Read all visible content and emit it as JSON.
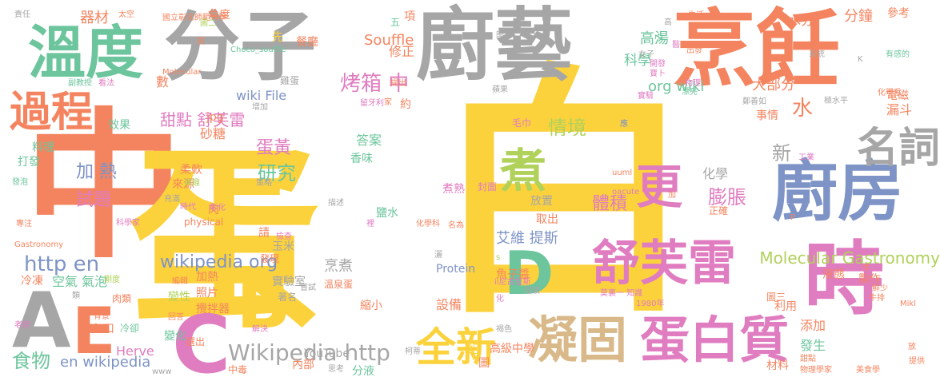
{
  "palette": {
    "orange": "#f4845f",
    "yellow": "#fcd23c",
    "gray": "#a6a6a6",
    "green": "#6cc59c",
    "blue": "#7e93c6",
    "pink": "#e07cc0",
    "lime": "#b0d15a",
    "tan": "#d9b98a"
  },
  "words": [
    {
      "t": "中"
    },
    {
      "t": "蛋"
    },
    {
      "t": "白"
    },
    {
      "t": "烹飪"
    },
    {
      "t": "廚藝"
    },
    {
      "t": "分子"
    },
    {
      "t": "溫度"
    },
    {
      "t": "過程"
    },
    {
      "t": "時"
    },
    {
      "t": "廚房"
    },
    {
      "t": "名詞"
    },
    {
      "t": "舒芙雷"
    },
    {
      "t": "蛋白質"
    },
    {
      "t": "凝固"
    },
    {
      "t": "全新"
    },
    {
      "t": "更"
    },
    {
      "t": "煮"
    },
    {
      "t": "D"
    },
    {
      "t": "A"
    },
    {
      "t": "E"
    },
    {
      "t": "C"
    },
    {
      "t": "B"
    },
    {
      "t": "Wikipedia http"
    },
    {
      "t": "http en"
    },
    {
      "t": "食物"
    },
    {
      "t": "en wikipedia"
    },
    {
      "t": "Molecular Gastronomy"
    },
    {
      "t": "wikipedia org"
    },
    {
      "t": "艾維 提斯"
    },
    {
      "t": "膨脹"
    },
    {
      "t": "體積"
    },
    {
      "t": "情境"
    },
    {
      "t": "蛋黃"
    },
    {
      "t": "研究"
    },
    {
      "t": "加 熱"
    },
    {
      "t": "試題"
    },
    {
      "t": "烤箱 中"
    },
    {
      "t": "甜點 舒芙雷"
    },
    {
      "t": "Souffle"
    },
    {
      "t": "wiki File"
    },
    {
      "t": "高湯"
    },
    {
      "t": "大部分"
    },
    {
      "t": "分鐘"
    },
    {
      "t": "科學"
    },
    {
      "t": "org wiki"
    },
    {
      "t": "水"
    },
    {
      "t": "新"
    },
    {
      "t": "化學"
    },
    {
      "t": "溫泉蛋"
    },
    {
      "t": "烹煮"
    },
    {
      "t": "Protein"
    },
    {
      "t": "YouTube"
    },
    {
      "t": "設備"
    },
    {
      "t": "內部"
    },
    {
      "t": "分液"
    },
    {
      "t": "發生"
    },
    {
      "t": "添加"
    },
    {
      "t": "利用"
    },
    {
      "t": "材料"
    },
    {
      "t": "製作"
    },
    {
      "t": "液態"
    },
    {
      "t": "圖三"
    },
    {
      "t": "漏斗"
    },
    {
      "t": "電磁"
    },
    {
      "t": "水分"
    },
    {
      "t": "參考"
    },
    {
      "t": "五"
    },
    {
      "t": "項"
    },
    {
      "t": "修正"
    },
    {
      "t": "先"
    },
    {
      "t": "餐廳"
    },
    {
      "t": "雞蛋"
    },
    {
      "t": "約"
    },
    {
      "t": "角度"
    },
    {
      "t": "器材"
    },
    {
      "t": "數"
    },
    {
      "t": "效果"
    },
    {
      "t": "料理"
    },
    {
      "t": "打發"
    },
    {
      "t": "冷凍"
    },
    {
      "t": "空氣 氣泡"
    },
    {
      "t": "肉類"
    },
    {
      "t": "入口"
    },
    {
      "t": "冷卻"
    },
    {
      "t": "變化"
    },
    {
      "t": "Herve"
    },
    {
      "t": "選出"
    },
    {
      "t": "中毒"
    },
    {
      "t": "攪拌器"
    },
    {
      "t": "照片"
    },
    {
      "t": "加熱"
    },
    {
      "t": "變性"
    },
    {
      "t": "肉"
    },
    {
      "t": "柔軟"
    },
    {
      "t": "來源"
    },
    {
      "t": "砂糖"
    },
    {
      "t": "jpg"
    },
    {
      "t": "答案"
    },
    {
      "t": "鹽水"
    },
    {
      "t": "毛巾"
    },
    {
      "t": "香味"
    },
    {
      "t": "煮熟"
    },
    {
      "t": "封面"
    },
    {
      "t": "放置"
    },
    {
      "t": "取出"
    },
    {
      "t": "正確"
    },
    {
      "t": "事情"
    },
    {
      "t": "玉米"
    },
    {
      "t": "請"
    },
    {
      "t": "發現"
    },
    {
      "t": "實驗室"
    },
    {
      "t": "著名"
    },
    {
      "t": "縮小"
    },
    {
      "t": "組"
    },
    {
      "t": "圖"
    },
    {
      "t": "高級中學"
    },
    {
      "t": "灑"
    },
    {
      "t": "魚子醬"
    },
    {
      "t": "physical"
    },
    {
      "t": "莫裏一 知識"
    },
    {
      "t": "1980年"
    },
    {
      "t": "鮮少"
    },
    {
      "t": "牛排"
    },
    {
      "t": "美食學"
    },
    {
      "t": "物理學家"
    },
    {
      "t": "甜點"
    },
    {
      "t": "放"
    },
    {
      "t": "提供"
    },
    {
      "t": "責任"
    },
    {
      "t": "太空"
    },
    {
      "t": "國立彰化師範大學"
    },
    {
      "t": "Choco_souffle"
    },
    {
      "t": "看法"
    },
    {
      "t": "副教授"
    },
    {
      "t": "Molecular"
    },
    {
      "t": "增加"
    },
    {
      "t": "生活"
    },
    {
      "t": "有感的"
    },
    {
      "t": "化學系"
    },
    {
      "t": "發泡"
    },
    {
      "t": "專注"
    },
    {
      "t": "Gastronomy"
    },
    {
      "t": "老師"
    },
    {
      "t": "www"
    },
    {
      "t": "解決"
    },
    {
      "t": "思考"
    },
    {
      "t": "uuml"
    },
    {
      "t": "oacute"
    },
    {
      "t": "ii尼古拉斯"
    },
    {
      "t": "名為"
    },
    {
      "t": "化學科"
    },
    {
      "t": "工業"
    },
    {
      "t": "件"
    },
    {
      "t": "Mikl"
    },
    {
      "t": "系統"
    },
    {
      "t": "rti"
    },
    {
      "t": "女子"
    },
    {
      "t": "開發"
    },
    {
      "t": "寶卜"
    },
    {
      "t": "物理"
    },
    {
      "t": "鄭善如"
    },
    {
      "t": "實驗"
    },
    {
      "t": "漂亮"
    },
    {
      "t": "應"
    },
    {
      "t": "描述"
    },
    {
      "t": "策略"
    },
    {
      "t": "科學家"
    },
    {
      "t": "時代"
    },
    {
      "t": "充滿"
    },
    {
      "t": "興趣"
    },
    {
      "t": "彰化"
    },
    {
      "t": "檢查"
    },
    {
      "t": "剛度"
    },
    {
      "t": "類"
    },
    {
      "t": "背景"
    },
    {
      "t": "回答"
    },
    {
      "t": "編輯"
    },
    {
      "t": "嘗試"
    },
    {
      "t": "柯蒂"
    },
    {
      "t": "閱讀"
    },
    {
      "t": "褐色"
    },
    {
      "t": "裡"
    },
    {
      "t": "蘋果"
    },
    {
      "t": "國立"
    },
    {
      "t": "高"
    },
    {
      "t": "醫"
    },
    {
      "t": "出發"
    },
    {
      "t": "極水平"
    },
    {
      "t": "圖二"
    },
    {
      "t": "煎"
    },
    {
      "t": "加"
    },
    {
      "t": "化"
    },
    {
      "t": "留牙利"
    },
    {
      "t": "家"
    },
    {
      "t": "提出"
    },
    {
      "t": "K"
    },
    {
      "t": "P"
    },
    {
      "t": "s"
    }
  ]
}
